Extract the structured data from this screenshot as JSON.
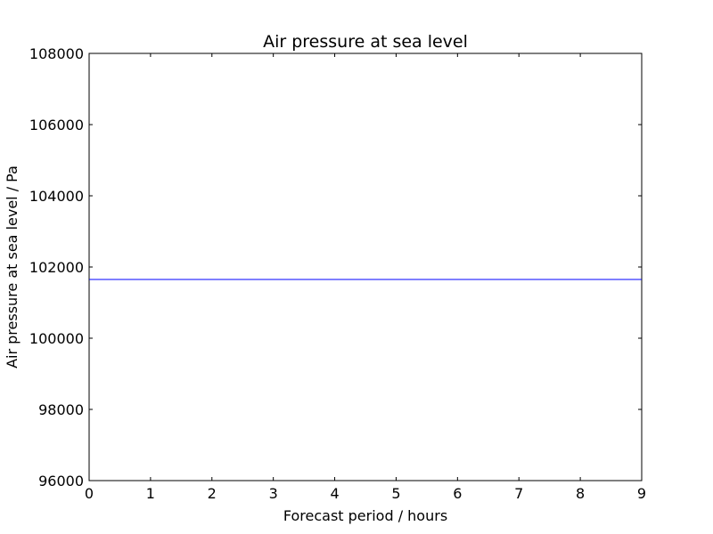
{
  "chart_data": {
    "type": "line",
    "title": "Air pressure at sea level",
    "xlabel": "Forecast period / hours",
    "ylabel": "Air pressure at sea level / Pa",
    "xlim": [
      0,
      9
    ],
    "ylim": [
      96000,
      108000
    ],
    "x_ticks": [
      0,
      1,
      2,
      3,
      4,
      5,
      6,
      7,
      8,
      9
    ],
    "y_ticks": [
      96000,
      98000,
      100000,
      102000,
      104000,
      106000,
      108000
    ],
    "grid": false,
    "series": [
      {
        "color": "#0000ff",
        "x": [
          0,
          9
        ],
        "y": [
          101650,
          101650
        ]
      }
    ]
  }
}
